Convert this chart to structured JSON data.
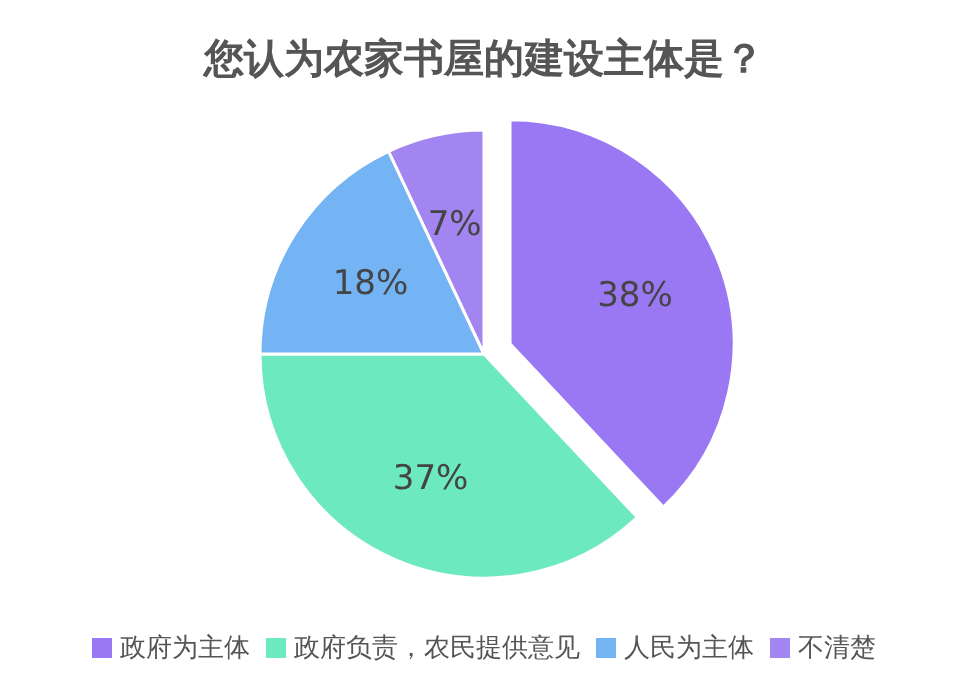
{
  "chart_data": {
    "type": "pie",
    "title": "您认为农家书屋的建设主体是？",
    "categories": [
      "政府为主体",
      "政府负责，农民提供意见",
      "人民为主体",
      "不清楚"
    ],
    "values": [
      38,
      37,
      18,
      7
    ],
    "colors": [
      "#9a78f4",
      "#6de9c0",
      "#74b3f4",
      "#a385f1"
    ],
    "value_labels": [
      "38%",
      "37%",
      "18%",
      "7%"
    ],
    "legend": "bottom"
  }
}
